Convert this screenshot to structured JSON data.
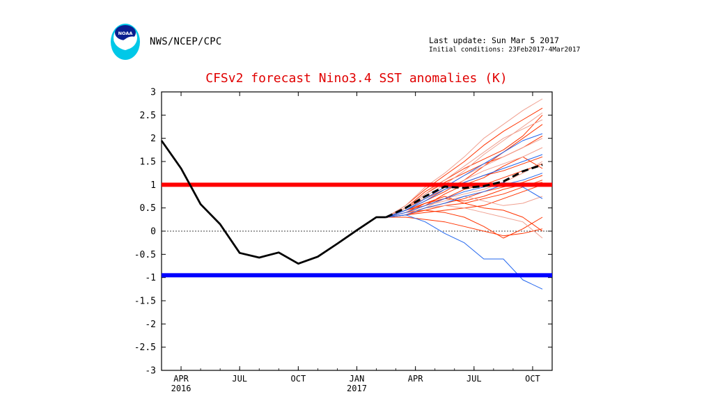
{
  "header": {
    "agency": "NWS/NCEP/CPC",
    "last_update": "Last update: Sun Mar  5 2017",
    "initial_conditions": "Initial conditions: 23Feb2017-4Mar2017"
  },
  "logo": {
    "text": "NOAA"
  },
  "chart_data": {
    "type": "line",
    "title": "CFSv2 forecast Nino3.4 SST anomalies (K)",
    "xlabel": "",
    "ylabel": "",
    "ylim": [
      -3,
      3
    ],
    "xlim": [
      -0.3,
      19.7
    ],
    "yticks": [
      3,
      2.5,
      2,
      1.5,
      1,
      0.5,
      0,
      -0.5,
      -1,
      -1.5,
      -2,
      -2.5,
      -3
    ],
    "ytick_labels": [
      "3",
      "2.5",
      "2",
      "1.5",
      "1",
      "0.5",
      "0",
      "-0.5",
      "-1",
      "-1.5",
      "-2",
      "-2.5",
      "-3"
    ],
    "xticks": [
      {
        "x": 0.7,
        "label": "APR",
        "year": "2016"
      },
      {
        "x": 3.7,
        "label": "JUL",
        "year": ""
      },
      {
        "x": 6.7,
        "label": "OCT",
        "year": ""
      },
      {
        "x": 9.7,
        "label": "JAN",
        "year": "2017"
      },
      {
        "x": 12.7,
        "label": "APR",
        "year": ""
      },
      {
        "x": 15.7,
        "label": "JUL",
        "year": ""
      },
      {
        "x": 18.7,
        "label": "OCT",
        "year": ""
      }
    ],
    "grid": false,
    "reference_lines": [
      {
        "y": 1.0,
        "color": "#ff0000"
      },
      {
        "y": -0.95,
        "color": "#0000ff"
      },
      {
        "y": 0,
        "color": "#000000",
        "style": "dashed"
      }
    ],
    "observed": {
      "color": "#000000",
      "x": [
        -0.3,
        0.7,
        1.7,
        2.7,
        3.7,
        4.7,
        5.7,
        6.7,
        7.7,
        8.7,
        9.7,
        10.7,
        11.2
      ],
      "values": [
        1.95,
        1.35,
        0.58,
        0.15,
        -0.47,
        -0.57,
        -0.46,
        -0.7,
        -0.55,
        -0.27,
        0.02,
        0.3,
        0.3
      ]
    },
    "ensemble_mean": {
      "color": "#000000",
      "style": "dashed",
      "x": [
        11.2,
        12.2,
        13.2,
        14.2,
        15.2,
        16.2,
        17.2,
        18.2,
        19.2
      ],
      "values": [
        0.3,
        0.5,
        0.75,
        0.96,
        0.93,
        0.97,
        1.07,
        1.29,
        1.43
      ]
    },
    "members_x": [
      11.2,
      12.2,
      13.2,
      14.2,
      15.2,
      16.2,
      17.2,
      18.2,
      19.2
    ],
    "members": [
      {
        "color": "#ff3300",
        "values": [
          0.3,
          0.45,
          0.65,
          0.85,
          1.1,
          1.4,
          1.7,
          2.0,
          2.3
        ]
      },
      {
        "color": "#ff3300",
        "values": [
          0.3,
          0.35,
          0.45,
          0.55,
          0.6,
          0.7,
          0.8,
          0.95,
          1.1
        ]
      },
      {
        "color": "#ff3300",
        "values": [
          0.3,
          0.5,
          0.8,
          1.05,
          1.25,
          1.45,
          1.6,
          1.8,
          2.05
        ]
      },
      {
        "color": "#ff3300",
        "values": [
          0.3,
          0.3,
          0.25,
          0.2,
          0.1,
          0.0,
          -0.1,
          -0.05,
          0.05
        ]
      },
      {
        "color": "#ff3300",
        "values": [
          0.3,
          0.4,
          0.55,
          0.7,
          0.9,
          1.0,
          1.15,
          1.3,
          1.45
        ]
      },
      {
        "color": "#ff3300",
        "values": [
          0.3,
          0.45,
          0.6,
          0.75,
          0.6,
          0.5,
          0.45,
          0.3,
          0.0
        ]
      },
      {
        "color": "#ff3300",
        "values": [
          0.3,
          0.5,
          0.7,
          0.9,
          1.05,
          1.2,
          1.3,
          1.45,
          1.6
        ]
      },
      {
        "color": "#ff3300",
        "values": [
          0.3,
          0.35,
          0.5,
          0.6,
          0.7,
          0.85,
          0.95,
          1.05,
          1.2
        ]
      },
      {
        "color": "#ff3300",
        "values": [
          0.3,
          0.55,
          0.9,
          1.2,
          1.5,
          1.85,
          2.15,
          2.4,
          2.65
        ]
      },
      {
        "color": "#ff3300",
        "values": [
          0.3,
          0.4,
          0.45,
          0.4,
          0.3,
          0.1,
          -0.15,
          0.05,
          0.3
        ]
      },
      {
        "color": "#ff3300",
        "values": [
          0.3,
          0.45,
          0.55,
          0.8,
          1.0,
          1.15,
          1.4,
          1.6,
          1.35
        ]
      },
      {
        "color": "#ff3300",
        "values": [
          0.3,
          0.4,
          0.6,
          0.7,
          0.65,
          0.75,
          0.9,
          1.0,
          1.05
        ]
      },
      {
        "color": "#ff3300",
        "values": [
          0.3,
          0.5,
          0.85,
          1.1,
          1.35,
          1.55,
          1.75,
          2.05,
          2.5
        ]
      },
      {
        "color": "#ff3300",
        "values": [
          0.3,
          0.35,
          0.4,
          0.45,
          0.5,
          0.55,
          0.7,
          0.85,
          1.0
        ]
      },
      {
        "color": "#f0a090",
        "values": [
          0.3,
          0.55,
          0.95,
          1.25,
          1.6,
          2.0,
          2.3,
          2.6,
          2.85
        ]
      },
      {
        "color": "#f0a090",
        "values": [
          0.3,
          0.45,
          0.7,
          0.95,
          1.2,
          1.4,
          1.6,
          1.8,
          2.0
        ]
      },
      {
        "color": "#f0a090",
        "values": [
          0.3,
          0.4,
          0.5,
          0.55,
          0.5,
          0.4,
          0.3,
          0.2,
          -0.15
        ]
      },
      {
        "color": "#f0a090",
        "values": [
          0.3,
          0.5,
          0.75,
          1.0,
          1.3,
          1.65,
          1.95,
          2.25,
          2.55
        ]
      },
      {
        "color": "#f0a090",
        "values": [
          0.3,
          0.35,
          0.5,
          0.7,
          0.8,
          0.9,
          1.05,
          1.25,
          1.5
        ]
      },
      {
        "color": "#f0a090",
        "values": [
          0.3,
          0.45,
          0.65,
          0.9,
          1.1,
          1.3,
          1.45,
          1.6,
          1.8
        ]
      },
      {
        "color": "#f0a090",
        "values": [
          0.3,
          0.4,
          0.55,
          0.65,
          0.75,
          0.65,
          0.55,
          0.6,
          0.75
        ]
      },
      {
        "color": "#f0a090",
        "values": [
          0.3,
          0.5,
          0.8,
          1.1,
          1.4,
          1.7,
          2.0,
          2.2,
          2.4
        ]
      },
      {
        "color": "#2266ee",
        "values": [
          0.3,
          0.35,
          0.2,
          -0.05,
          -0.25,
          -0.6,
          -0.6,
          -1.05,
          -1.25
        ]
      },
      {
        "color": "#2266ee",
        "values": [
          0.3,
          0.45,
          0.7,
          0.95,
          1.2,
          1.45,
          1.7,
          1.95,
          2.1
        ]
      },
      {
        "color": "#2266ee",
        "values": [
          0.3,
          0.4,
          0.55,
          0.7,
          0.85,
          0.95,
          1.05,
          0.95,
          0.7
        ]
      },
      {
        "color": "#2266ee",
        "values": [
          0.3,
          0.45,
          0.65,
          0.9,
          1.05,
          1.2,
          1.35,
          1.5,
          1.65
        ]
      },
      {
        "color": "#2266ee",
        "values": [
          0.3,
          0.35,
          0.5,
          0.6,
          0.75,
          0.85,
          1.0,
          1.1,
          1.25
        ]
      }
    ]
  }
}
